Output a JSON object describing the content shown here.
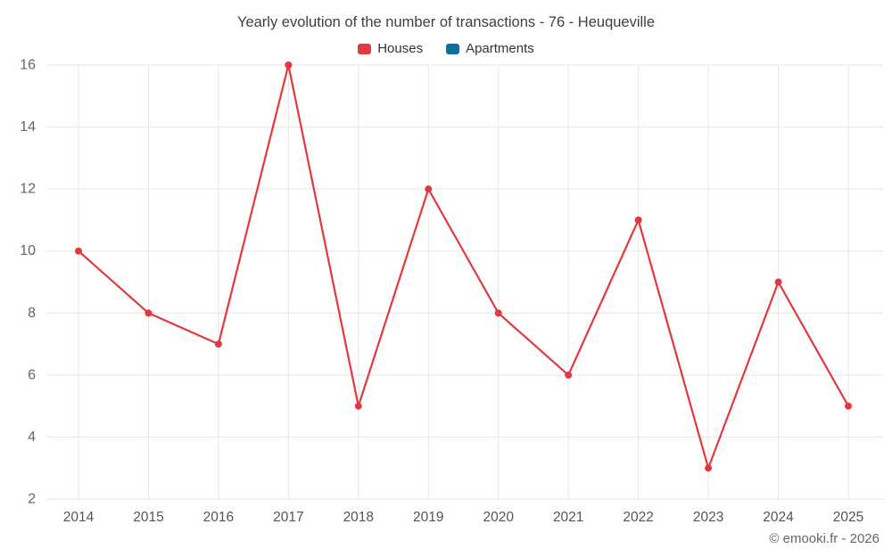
{
  "chart": {
    "title": "Yearly evolution of the number of transactions - 76 - Heuqueville"
  },
  "footer": {
    "credit": "© emooki.fr - 2026"
  },
  "chart_data": {
    "type": "line",
    "title": "Yearly evolution of the number of transactions - 76 - Heuqueville",
    "categories": [
      "2014",
      "2015",
      "2016",
      "2017",
      "2018",
      "2019",
      "2020",
      "2021",
      "2022",
      "2023",
      "2024",
      "2025"
    ],
    "series": [
      {
        "name": "Houses",
        "color": "#e2383f",
        "values": [
          10,
          8,
          7,
          16,
          5,
          12,
          8,
          6,
          11,
          3,
          9,
          5
        ]
      },
      {
        "name": "Apartments",
        "color": "#0f6e9e",
        "values": []
      }
    ],
    "xlabel": "",
    "ylabel": "",
    "ylim": [
      2,
      16
    ],
    "yticks": [
      2,
      4,
      6,
      8,
      10,
      12,
      14,
      16
    ],
    "grid": true,
    "grid_color": "#e6e6e6",
    "legend_position": "top",
    "marker_radius": 4,
    "line_width": 2.2,
    "axis_label_color": "#666666",
    "x_label_color": "#555555"
  }
}
